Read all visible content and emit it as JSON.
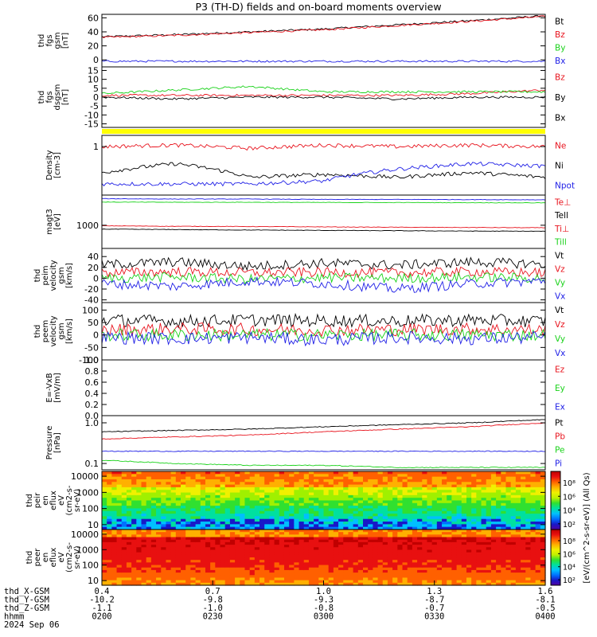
{
  "title": "P3 (TH-D) fields and on-board moments overview",
  "colors": {
    "black": "#000000",
    "red": "#e8141e",
    "green": "#19d219",
    "blue": "#1e1ee6",
    "yellow": "#ffff00"
  },
  "chart_data": {
    "type": "line",
    "title": "P3 (TH-D) fields and on-board moments overview",
    "x_range": [
      0.4,
      1.6
    ],
    "panels": [
      {
        "ylabel": [
          "thd",
          "fgs",
          "gsm",
          "[nT]"
        ],
        "ylim": [
          -10,
          65
        ],
        "ticks": [
          "60",
          "40",
          "20",
          "0"
        ],
        "tick_values": [
          60,
          40,
          20,
          0
        ],
        "series": [
          {
            "name": "Bt",
            "color": "#000000",
            "values": [
              33,
              36,
              40,
              44,
              50,
              56,
              63
            ]
          },
          {
            "name": "Bz",
            "color": "#e8141e",
            "values": [
              32,
              35,
              39,
              43,
              49,
              55,
              62
            ]
          },
          {
            "name": "By",
            "color": "#19d219",
            "values": [
              -14,
              -14,
              -13,
              -13,
              -13,
              -14,
              -14
            ]
          },
          {
            "name": "Bx",
            "color": "#1e1ee6",
            "values": [
              -2,
              -2,
              -2,
              -2,
              -2,
              -2,
              -2
            ]
          }
        ],
        "legend": [
          "Bt",
          "Bz",
          "By",
          "Bx"
        ]
      },
      {
        "ylabel": [
          "thd",
          "fgs",
          "dsgsm",
          "[nT]"
        ],
        "ylim": [
          -17,
          17
        ],
        "ticks": [
          "15",
          "10",
          "5",
          "0",
          "-5",
          "-10",
          "-15"
        ],
        "tick_values": [
          15,
          10,
          5,
          0,
          -5,
          -10,
          -15
        ],
        "series": [
          {
            "name": "Bz",
            "color": "#e8141e",
            "values": [
              1,
              1,
              1,
              1,
              1,
              2,
              4
            ]
          },
          {
            "name": "By",
            "color": "#19d219",
            "values": [
              2,
              4,
              6,
              3,
              3,
              3,
              3
            ]
          },
          {
            "name": "Bx",
            "color": "#000000",
            "values": [
              0,
              -1,
              0,
              0,
              -1,
              0,
              0
            ]
          }
        ],
        "legend": [
          "Bz",
          "By",
          "Bx"
        ]
      },
      {
        "ylabel": [
          "Density",
          "[cm-3]"
        ],
        "ylim": [
          0.05,
          2
        ],
        "ticks": [
          "1"
        ],
        "tick_values": [
          1
        ],
        "series": [
          {
            "name": "Ne",
            "color": "#e8141e",
            "values": [
              1.0,
              1.1,
              0.9,
              1.1,
              1.0,
              1.1,
              1.0
            ]
          },
          {
            "name": "Ni",
            "color": "#000000",
            "values": [
              0.2,
              0.35,
              0.15,
              0.18,
              0.15,
              0.2,
              0.15
            ]
          },
          {
            "name": "Npot",
            "color": "#1e1ee6",
            "values": [
              0.1,
              0.1,
              0.1,
              0.12,
              0.25,
              0.35,
              0.3
            ]
          }
        ],
        "legend": [
          "Ne",
          "Ni",
          "Npot"
        ]
      },
      {
        "ylabel": [
          "magt3",
          "[eV]"
        ],
        "ylim": [
          100,
          20000
        ],
        "ticks": [
          "1000"
        ],
        "tick_values": [
          1000
        ],
        "series": [
          {
            "name": "Te⊥",
            "color": "#e8141e",
            "values": [
              950,
              900,
              880,
              850,
              820,
              800,
              780
            ]
          },
          {
            "name": "Te||",
            "color": "#000000",
            "values": [
              680,
              650,
              620,
              600,
              580,
              560,
              550
            ]
          },
          {
            "name": "Ti⊥",
            "color": "#1e1ee6",
            "values": [
              14000,
              13500,
              13500,
              13000,
              13000,
              12800,
              12500
            ]
          },
          {
            "name": "Ti||",
            "color": "#19d219",
            "values": [
              10000,
              9800,
              9800,
              9600,
              9500,
              9400,
              9300
            ]
          }
        ],
        "legend": [
          "Te⊥",
          "Tell",
          "Ti⊥",
          "Till"
        ]
      },
      {
        "ylabel": [
          "thd",
          "peim",
          "velocity",
          "gsm",
          "[km/s]"
        ],
        "ylim": [
          -45,
          55
        ],
        "ticks": [
          "40",
          "20",
          "0",
          "-20",
          "-40"
        ],
        "tick_values": [
          40,
          20,
          0,
          -20,
          -40
        ],
        "series": [
          {
            "name": "Vt",
            "color": "#000000",
            "values": [
              25,
              30,
              22,
              28,
              24,
              30,
              26
            ]
          },
          {
            "name": "Vz",
            "color": "#e8141e",
            "values": [
              10,
              12,
              10,
              11,
              10,
              12,
              10
            ]
          },
          {
            "name": "Vy",
            "color": "#19d219",
            "values": [
              0,
              2,
              -2,
              1,
              0,
              2,
              0
            ]
          },
          {
            "name": "Vx",
            "color": "#1e1ee6",
            "values": [
              -10,
              -15,
              -5,
              -10,
              -20,
              -10,
              -5
            ]
          }
        ],
        "legend": [
          "Vt",
          "Vz",
          "Vy",
          "Vx"
        ]
      },
      {
        "ylabel": [
          "thd",
          "peem",
          "velocity",
          "gsm",
          "[km/s]"
        ],
        "ylim": [
          -100,
          130
        ],
        "ticks": [
          "100",
          "50",
          "0",
          "-50",
          "-100"
        ],
        "tick_values": [
          100,
          50,
          0,
          -50,
          -100
        ],
        "series": [
          {
            "name": "Vt",
            "color": "#000000",
            "values": [
              60,
              55,
              60,
              58,
              56,
              60,
              55
            ]
          },
          {
            "name": "Vz",
            "color": "#e8141e",
            "values": [
              20,
              25,
              22,
              20,
              22,
              24,
              20
            ]
          },
          {
            "name": "Vy",
            "color": "#19d219",
            "values": [
              0,
              0,
              0,
              0,
              0,
              0,
              0
            ]
          },
          {
            "name": "Vx",
            "color": "#1e1ee6",
            "values": [
              -10,
              -15,
              -10,
              -20,
              -10,
              -15,
              -10
            ]
          }
        ],
        "legend": [
          "Vt",
          "Vz",
          "Vy",
          "Vx"
        ]
      },
      {
        "ylabel": [
          "E=-VxB",
          "[mV/m]"
        ],
        "ylim": [
          0,
          1
        ],
        "ticks": [
          "1.0",
          "0.8",
          "0.6",
          "0.4",
          "0.2",
          "0.0"
        ],
        "tick_values": [
          1.0,
          0.8,
          0.6,
          0.4,
          0.2,
          0.0
        ],
        "series": [],
        "legend": [
          "Ez",
          "Ey",
          "Ex"
        ]
      },
      {
        "ylabel": [
          "Pressure",
          "[nPa]"
        ],
        "ylim": [
          0.07,
          1.5
        ],
        "ticks": [
          "1.0",
          "0.1"
        ],
        "tick_values": [
          1.0,
          0.1
        ],
        "series": [
          {
            "name": "Pt",
            "color": "#000000",
            "values": [
              0.6,
              0.65,
              0.7,
              0.8,
              0.9,
              1.0,
              1.2
            ]
          },
          {
            "name": "Pb",
            "color": "#e8141e",
            "values": [
              0.4,
              0.45,
              0.5,
              0.6,
              0.7,
              0.8,
              1.0
            ]
          },
          {
            "name": "Pe",
            "color": "#1e1ee6",
            "values": [
              0.2,
              0.2,
              0.2,
              0.2,
              0.2,
              0.2,
              0.2
            ]
          },
          {
            "name": "Pi",
            "color": "#19d219",
            "values": [
              0.12,
              0.1,
              0.09,
              0.09,
              0.08,
              0.08,
              0.08
            ]
          }
        ],
        "legend": [
          "Pt",
          "Pb",
          "Pe",
          "Pi"
        ]
      },
      {
        "type": "heatmap",
        "ylabel": [
          "thd",
          "peir",
          "en",
          "eflux",
          "eV",
          "(cm2-s-",
          "sr-eV)"
        ],
        "ylim": [
          5,
          20000
        ],
        "ticks": [
          "10000",
          "1000",
          "100",
          "10"
        ],
        "tick_values": [
          10000,
          1000,
          100,
          10
        ]
      },
      {
        "type": "heatmap",
        "ylabel": [
          "thd",
          "peer",
          "en",
          "eflux",
          "eV",
          "(cm2-s-",
          "sr-eV)"
        ],
        "ylim": [
          5,
          20000
        ],
        "ticks": [
          "10000",
          "1000",
          "100",
          "10"
        ],
        "tick_values": [
          10000,
          1000,
          100,
          10
        ]
      }
    ],
    "colorbar": {
      "label": "[eV/(cm^2-s-sr-eV)] (All Qs)",
      "ticks": [
        "10⁸",
        "10⁶",
        "10⁴",
        "10²",
        "10⁸",
        "10⁶",
        "10⁴",
        "10²"
      ]
    },
    "x_axis": {
      "row_labels": [
        "thd_X-GSM",
        "thd_Y-GSM",
        "thd_Z-GSM",
        "hhmm",
        "2024 Sep 06"
      ],
      "columns": [
        {
          "x": 0.4,
          "vals": [
            "0.4",
            "-10.2",
            "-1.1",
            "0200"
          ]
        },
        {
          "x": 0.7,
          "vals": [
            "0.7",
            "-9.8",
            "-1.0",
            "0230"
          ]
        },
        {
          "x": 1.0,
          "vals": [
            "1.0",
            "-9.3",
            "-0.8",
            "0300"
          ]
        },
        {
          "x": 1.3,
          "vals": [
            "1.3",
            "-8.7",
            "-0.7",
            "0330"
          ]
        },
        {
          "x": 1.6,
          "vals": [
            "1.6",
            "-8.1",
            "-0.5",
            "0400"
          ]
        }
      ]
    }
  }
}
